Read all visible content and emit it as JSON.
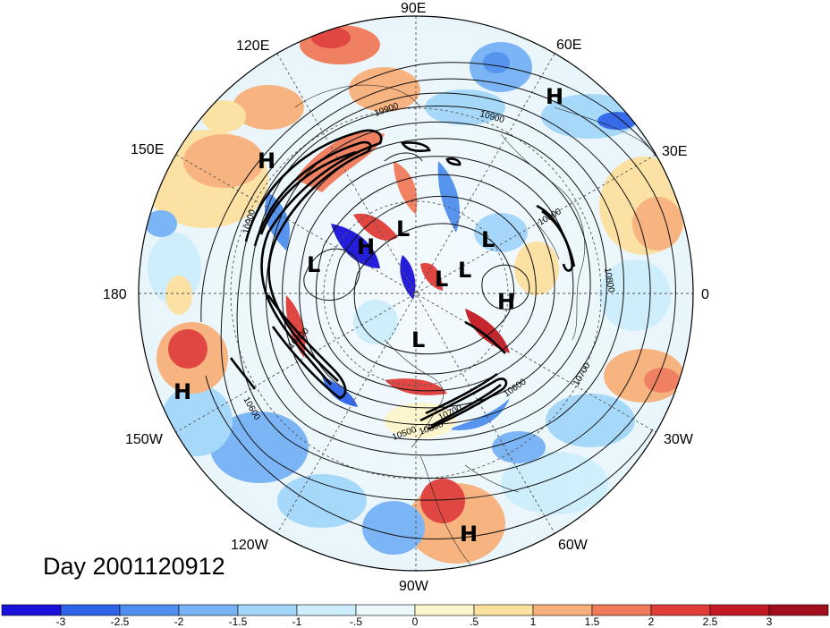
{
  "title": "Day 2001120912",
  "longitude_labels": [
    {
      "key": "90E",
      "text": "90E"
    },
    {
      "key": "60E",
      "text": "60E"
    },
    {
      "key": "30E",
      "text": "30E"
    },
    {
      "key": "0",
      "text": "0"
    },
    {
      "key": "30W",
      "text": "30W"
    },
    {
      "key": "60W",
      "text": "60W"
    },
    {
      "key": "90W",
      "text": "90W"
    },
    {
      "key": "120W",
      "text": "120W"
    },
    {
      "key": "150W",
      "text": "150W"
    },
    {
      "key": "180",
      "text": "180"
    },
    {
      "key": "150E",
      "text": "150E"
    },
    {
      "key": "120E",
      "text": "120E"
    }
  ],
  "pressure_centers": [
    {
      "type": "H",
      "text": "H"
    },
    {
      "type": "H",
      "text": "H"
    },
    {
      "type": "H",
      "text": "H"
    },
    {
      "type": "H",
      "text": "H"
    },
    {
      "type": "H",
      "text": "H"
    },
    {
      "type": "H",
      "text": "H"
    },
    {
      "type": "L",
      "text": "L"
    },
    {
      "type": "L",
      "text": "L"
    },
    {
      "type": "L",
      "text": "L"
    },
    {
      "type": "L",
      "text": "L"
    },
    {
      "type": "L",
      "text": "L"
    },
    {
      "type": "L",
      "text": "L"
    }
  ],
  "contour_labels": [
    "10900",
    "10900",
    "10900",
    "10800",
    "10800",
    "10800",
    "10700",
    "10600",
    "10600",
    "10700",
    "10500",
    "10500"
  ],
  "colorbar": {
    "ticks": [
      "-3",
      "-2.5",
      "-2",
      "-1.5",
      "-1",
      "-.5",
      "0",
      ".5",
      "1",
      "1.5",
      "2",
      "2.5",
      "3"
    ],
    "colors": [
      "#1a12d8",
      "#2e63e8",
      "#4f8ff0",
      "#77b2f5",
      "#a3d6fa",
      "#cdeefc",
      "#eaf8fc",
      "#fdf5cc",
      "#fce0a0",
      "#f8b07a",
      "#f07b5a",
      "#e03d38",
      "#c31a22",
      "#a00d1c"
    ]
  }
}
